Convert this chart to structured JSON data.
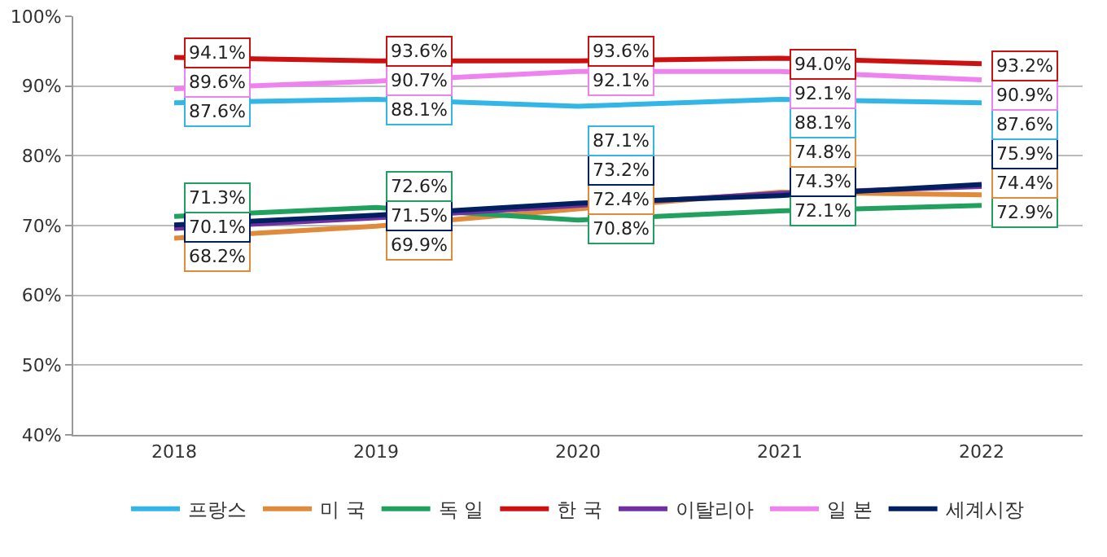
{
  "chart_data": {
    "type": "line",
    "categories": [
      "2018",
      "2019",
      "2020",
      "2021",
      "2022"
    ],
    "series": [
      {
        "name": "프랑스",
        "color": "#33b5e5",
        "values": [
          87.6,
          88.1,
          87.1,
          88.1,
          87.6
        ],
        "value_labels": [
          "87.6%",
          "88.1%",
          "87.1%",
          "88.1%",
          "87.6%"
        ]
      },
      {
        "name": "미 국",
        "color": "#e08a3c",
        "values": [
          68.2,
          69.9,
          72.4,
          74.8,
          74.4
        ],
        "value_labels": [
          "68.2%",
          "69.9%",
          "72.4%",
          "74.8%",
          "74.4%"
        ]
      },
      {
        "name": "독 일",
        "color": "#22a060",
        "values": [
          71.3,
          72.6,
          70.8,
          72.1,
          72.9
        ],
        "value_labels": [
          "71.3%",
          "72.6%",
          "70.8%",
          "72.1%",
          "72.9%"
        ]
      },
      {
        "name": "한 국",
        "color": "#cc1111",
        "values": [
          94.1,
          93.6,
          93.6,
          94.0,
          93.2
        ],
        "value_labels": [
          "94.1%",
          "93.6%",
          "93.6%",
          "94.0%",
          "93.2%"
        ]
      },
      {
        "name": "이탈리아",
        "color": "#7030a0",
        "values": [
          69.6,
          71.1,
          72.9,
          74.6,
          75.6
        ]
      },
      {
        "name": "일 본",
        "color": "#ee82ee",
        "values": [
          89.6,
          90.7,
          92.1,
          92.1,
          90.9
        ],
        "value_labels": [
          "89.6%",
          "90.7%",
          "92.1%",
          "92.1%",
          "90.9%"
        ]
      },
      {
        "name": "세계시장",
        "color": "#002060",
        "values": [
          70.1,
          71.5,
          73.2,
          74.3,
          75.9
        ],
        "value_labels": [
          "70.1%",
          "71.5%",
          "73.2%",
          "74.3%",
          "75.9%"
        ]
      }
    ],
    "ylim": [
      40,
      100
    ],
    "yticks": [
      {
        "value": 40,
        "label": "40%"
      },
      {
        "value": 50,
        "label": "50%"
      },
      {
        "value": 60,
        "label": "60%"
      },
      {
        "value": 70,
        "label": "70%"
      },
      {
        "value": 80,
        "label": "80%"
      },
      {
        "value": 90,
        "label": "90%"
      },
      {
        "value": 100,
        "label": "100%"
      }
    ],
    "grid": "y",
    "legend": "bottom",
    "marker": "none",
    "line_style": "solid"
  }
}
